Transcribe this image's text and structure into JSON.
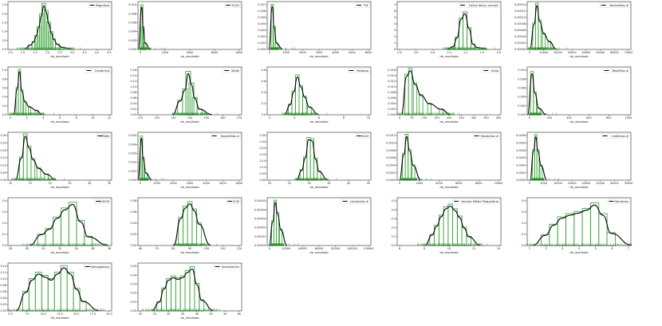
{
  "colors": {
    "hist": "#2ca02c",
    "kde": "#000000",
    "rug": "#2ca02c",
    "axis": "#000000"
  },
  "chart_data": [
    {
      "type": "histogram",
      "legend": "Magnésio",
      "xlabel": "de_resultado",
      "xticks": [
        "0.5",
        "1.0",
        "1.5",
        "2.0",
        "2.5",
        "3.0",
        "3.5",
        "4.0",
        "4.5"
      ],
      "yticks": [
        "0.0",
        "0.5",
        "1.0",
        "1.5",
        "2.0",
        "2.5"
      ],
      "xlim": [
        0.4,
        4.6
      ],
      "ylim": [
        0,
        2.7
      ],
      "peak": 1.95,
      "bins": [
        [
          1.3,
          0.25
        ],
        [
          1.45,
          0.45
        ],
        [
          1.55,
          0.8
        ],
        [
          1.65,
          1.3
        ],
        [
          1.75,
          2.0
        ],
        [
          1.85,
          2.6
        ],
        [
          1.95,
          2.2
        ],
        [
          2.05,
          1.55
        ],
        [
          2.15,
          1.0
        ],
        [
          2.25,
          0.6
        ],
        [
          2.4,
          0.3
        ],
        [
          2.6,
          0.12
        ]
      ]
    },
    {
      "type": "histogram",
      "legend": "TSCD",
      "xlabel": "de_resultado",
      "xticks": [
        "0",
        "2000",
        "4000",
        "6000",
        "8000"
      ],
      "yticks": [
        "0.000",
        "0.002",
        "0.004",
        "0.006",
        "0.008",
        "0.010"
      ],
      "xlim": [
        -300,
        8800
      ],
      "ylim": [
        0,
        0.0105
      ],
      "peak": 0.0098,
      "bins": [
        [
          30,
          0.0098
        ],
        [
          150,
          0.005
        ],
        [
          300,
          0.0015
        ]
      ]
    },
    {
      "type": "histogram",
      "legend": "TSF",
      "xlabel": "de_resultado",
      "xticks": [
        "0",
        "1000",
        "2000",
        "3000",
        "4000",
        "5000",
        "6000"
      ],
      "yticks": [
        "0.000",
        "0.001",
        "0.002",
        "0.003",
        "0.004",
        "0.005",
        "0.006",
        "0.007"
      ],
      "xlim": [
        -300,
        6400
      ],
      "ylim": [
        0,
        0.0072
      ],
      "peak": 0.0058,
      "bins": [
        [
          30,
          0.0068
        ],
        [
          150,
          0.0035
        ],
        [
          300,
          0.001
        ]
      ]
    },
    {
      "type": "histogram",
      "legend": "Cálcio iônico mmol/L",
      "xlabel": "de_resultado",
      "xticks": [
        "0.4",
        "0.6",
        "0.8",
        "1.0",
        "1.2",
        "1.4",
        "1.6"
      ],
      "yticks": [
        "0",
        "1",
        "2",
        "3",
        "4",
        "5",
        "6",
        "7"
      ],
      "xlim": [
        0.35,
        1.65
      ],
      "ylim": [
        0,
        7
      ],
      "peak": 5.2,
      "bins": [
        [
          1.05,
          0.4
        ],
        [
          1.1,
          1.8
        ],
        [
          1.15,
          4.6
        ],
        [
          1.2,
          5.5
        ],
        [
          1.25,
          3.2
        ],
        [
          1.3,
          0.8
        ],
        [
          1.35,
          0.3
        ]
      ]
    },
    {
      "type": "histogram",
      "legend": "Neutrófilos #",
      "xlabel": "de_resultado",
      "xticks": [
        "0",
        "10000",
        "20000",
        "30000",
        "40000",
        "50000",
        "60000",
        "70000"
      ],
      "yticks": [
        "0.00000",
        "0.00002",
        "0.00004",
        "0.00006",
        "0.00008",
        "0.00010",
        "0.00012",
        "0.00014"
      ],
      "xlim": [
        -3000,
        72000
      ],
      "ylim": [
        0,
        0.000145
      ],
      "peak": 0.00011,
      "bins": [
        [
          2000,
          8e-05
        ],
        [
          4000,
          0.00014
        ],
        [
          6000,
          9e-05
        ],
        [
          9000,
          5e-05
        ],
        [
          13000,
          2.5e-05
        ]
      ]
    },
    {
      "type": "histogram",
      "legend": "Creatinina",
      "xlabel": "de_resultado",
      "xticks": [
        "0",
        "2",
        "4",
        "6",
        "8",
        "10",
        "12"
      ],
      "yticks": [
        "0.0",
        "0.2",
        "0.4",
        "0.6",
        "0.8",
        "1.0"
      ],
      "xlim": [
        -0.5,
        13
      ],
      "ylim": [
        0,
        1.05
      ],
      "peak": 0.85,
      "bins": [
        [
          0.7,
          0.6
        ],
        [
          1.0,
          1.0
        ],
        [
          1.3,
          0.55
        ],
        [
          1.7,
          0.3
        ],
        [
          2.3,
          0.18
        ],
        [
          3.2,
          0.1
        ]
      ]
    },
    {
      "type": "histogram",
      "legend": "Sódio",
      "xlabel": "de_resultado",
      "xticks": [
        "110",
        "120",
        "130",
        "140",
        "150",
        "160",
        "170"
      ],
      "yticks": [
        "0.00",
        "0.02",
        "0.04",
        "0.06",
        "0.08",
        "0.10",
        "0.12",
        "0.14",
        "0.16"
      ],
      "xlim": [
        108,
        172
      ],
      "ylim": [
        0,
        0.165
      ],
      "peak": 0.1,
      "bins": [
        [
          134,
          0.05
        ],
        [
          137,
          0.09
        ],
        [
          139,
          0.15
        ],
        [
          141,
          0.11
        ],
        [
          143,
          0.06
        ],
        [
          146,
          0.02
        ]
      ]
    },
    {
      "type": "histogram",
      "legend": "Potássio",
      "xlabel": "de_resultado",
      "xticks": [
        "2",
        "4",
        "6",
        "8",
        "10"
      ],
      "yticks": [
        "0.0",
        "0.2",
        "0.4",
        "0.6",
        "0.8"
      ],
      "xlim": [
        1.6,
        10.2
      ],
      "ylim": [
        0,
        0.9
      ],
      "peak": 0.65,
      "bins": [
        [
          3.5,
          0.2
        ],
        [
          3.8,
          0.45
        ],
        [
          4.1,
          0.75
        ],
        [
          4.4,
          0.55
        ],
        [
          4.7,
          0.35
        ],
        [
          5.1,
          0.15
        ]
      ]
    },
    {
      "type": "histogram",
      "legend": "Uréia",
      "xlabel": "de_resultado",
      "xticks": [
        "0",
        "50",
        "100",
        "150",
        "200",
        "250",
        "300",
        "350",
        "400"
      ],
      "yticks": [
        "0.000",
        "0.002",
        "0.004",
        "0.006",
        "0.008",
        "0.010",
        "0.012",
        "0.014",
        "0.016"
      ],
      "xlim": [
        -15,
        420
      ],
      "ylim": [
        0,
        0.0165
      ],
      "peak": 0.015,
      "bins": [
        [
          25,
          0.014
        ],
        [
          40,
          0.016
        ],
        [
          60,
          0.011
        ],
        [
          85,
          0.007
        ],
        [
          120,
          0.004
        ],
        [
          170,
          0.002
        ]
      ]
    },
    {
      "type": "histogram",
      "legend": "Basófilos #",
      "xlabel": "de_resultado",
      "xticks": [
        "0",
        "200",
        "400",
        "600",
        "800",
        "1000"
      ],
      "yticks": [
        "0.000",
        "0.002",
        "0.004",
        "0.006",
        "0.008",
        "0.010"
      ],
      "xlim": [
        -40,
        1040
      ],
      "ylim": [
        0,
        0.0105
      ],
      "peak": 0.0085,
      "bins": [
        [
          10,
          0.0095
        ],
        [
          40,
          0.005
        ],
        [
          80,
          0.0015
        ]
      ]
    },
    {
      "type": "histogram",
      "legend": "RDW",
      "xlabel": "de_resultado",
      "xticks": [
        "10",
        "15",
        "20",
        "25",
        "30",
        "35"
      ],
      "yticks": [
        "0.00",
        "0.05",
        "0.10",
        "0.15",
        "0.20",
        "0.25",
        "0.30"
      ],
      "xlim": [
        9,
        36
      ],
      "ylim": [
        0,
        0.31
      ],
      "peak": 0.27,
      "bins": [
        [
          12.5,
          0.15
        ],
        [
          13.5,
          0.3
        ],
        [
          14.5,
          0.22
        ],
        [
          15.5,
          0.14
        ],
        [
          17,
          0.08
        ],
        [
          19,
          0.04
        ]
      ]
    },
    {
      "type": "histogram",
      "legend": "Eosinófilos #",
      "xlabel": "de_resultado",
      "xticks": [
        "0",
        "1000",
        "2000",
        "3000",
        "4000",
        "5000",
        "6000"
      ],
      "yticks": [
        "0.000",
        "0.001",
        "0.002",
        "0.003",
        "0.004",
        "0.005"
      ],
      "xlim": [
        -200,
        6300
      ],
      "ylim": [
        0,
        0.0052
      ],
      "peak": 0.0042,
      "bins": [
        [
          20,
          0.0048
        ],
        [
          120,
          0.0025
        ],
        [
          300,
          0.0008
        ]
      ]
    },
    {
      "type": "histogram",
      "legend": "HCM",
      "xlabel": "de_resultado",
      "xticks": [
        "20",
        "25",
        "30",
        "35",
        "40",
        "45"
      ],
      "yticks": [
        "0.00",
        "0.05",
        "0.10",
        "0.15",
        "0.20",
        "0.25",
        "0.30",
        "0.35"
      ],
      "xlim": [
        17,
        47
      ],
      "ylim": [
        0,
        0.37
      ],
      "peak": 0.3,
      "bins": [
        [
          27,
          0.08
        ],
        [
          28,
          0.18
        ],
        [
          29,
          0.33
        ],
        [
          30,
          0.32
        ],
        [
          31,
          0.17
        ],
        [
          32,
          0.07
        ]
      ]
    },
    {
      "type": "histogram",
      "legend": "Monócitos #",
      "xlabel": "de_resultado",
      "xticks": [
        "0",
        "2000",
        "4000",
        "6000",
        "8000",
        "10000"
      ],
      "yticks": [
        "0.0000",
        "0.0002",
        "0.0004",
        "0.0006",
        "0.0008",
        "0.0010",
        "0.0012"
      ],
      "xlim": [
        -400,
        10500
      ],
      "ylim": [
        0,
        0.00125
      ],
      "peak": 0.0011,
      "bins": [
        [
          300,
          0.0007
        ],
        [
          600,
          0.0012
        ],
        [
          900,
          0.0008
        ],
        [
          1300,
          0.0004
        ]
      ]
    },
    {
      "type": "histogram",
      "legend": "Linfócitos #",
      "xlabel": "de_resultado",
      "xticks": [
        "0",
        "5000",
        "10000",
        "15000",
        "20000",
        "25000",
        "30000",
        "35000"
      ],
      "yticks": [
        "0.0000",
        "0.0001",
        "0.0002",
        "0.0003",
        "0.0004",
        "0.0005",
        "0.0006"
      ],
      "xlim": [
        -1500,
        36000
      ],
      "ylim": [
        0,
        0.00063
      ],
      "peak": 0.00052,
      "bins": [
        [
          800,
          0.0004
        ],
        [
          1600,
          0.0006
        ],
        [
          2400,
          0.0004
        ],
        [
          3500,
          0.0002
        ]
      ]
    },
    {
      "type": "histogram",
      "legend": "CHCM",
      "xlabel": "de_resultado",
      "xticks": [
        "26",
        "28",
        "30",
        "32",
        "34",
        "36",
        "38"
      ],
      "yticks": [
        "0.0",
        "0.1",
        "0.2",
        "0.3",
        "0.4"
      ],
      "xlim": [
        25.2,
        38.5
      ],
      "ylim": [
        0,
        0.42
      ],
      "peak": 0.35,
      "bins": [
        [
          29.5,
          0.1
        ],
        [
          30.5,
          0.15
        ],
        [
          31.5,
          0.25
        ],
        [
          32.5,
          0.33
        ],
        [
          33.5,
          0.38
        ],
        [
          34.5,
          0.22
        ],
        [
          35.5,
          0.08
        ]
      ]
    },
    {
      "type": "histogram",
      "legend": "VCM",
      "xlabel": "de_resultado",
      "xticks": [
        "60",
        "70",
        "80",
        "90",
        "100",
        "110",
        "120"
      ],
      "yticks": [
        "0.00",
        "0.02",
        "0.04",
        "0.06",
        "0.08"
      ],
      "xlim": [
        56,
        124
      ],
      "ylim": [
        0,
        0.085
      ],
      "peak": 0.077,
      "bins": [
        [
          84,
          0.05
        ],
        [
          87,
          0.07
        ],
        [
          90,
          0.078
        ],
        [
          93,
          0.065
        ],
        [
          96,
          0.04
        ]
      ]
    },
    {
      "type": "histogram",
      "legend": "Leucócitos #",
      "xlabel": "de_resultado",
      "xticks": [
        "0",
        "20000",
        "40000",
        "60000",
        "80000",
        "100000",
        "120000"
      ],
      "yticks": [
        "0.00000",
        "0.00001",
        "0.00002",
        "0.00003",
        "0.00004",
        "0.00005"
      ],
      "xlim": [
        -4000,
        125000
      ],
      "ylim": [
        0,
        5.8e-05
      ],
      "peak": 5.2e-05,
      "bins": [
        [
          3000,
          3e-05
        ],
        [
          6000,
          5.5e-05
        ],
        [
          9000,
          4e-05
        ],
        [
          13000,
          2e-05
        ]
      ]
    },
    {
      "type": "histogram",
      "legend": "Volume Médio Plaquetário",
      "xlabel": "de_resultado",
      "xticks": [
        "6",
        "8",
        "10",
        "12",
        "14"
      ],
      "yticks": [
        "0.0",
        "0.1",
        "0.2",
        "0.3",
        "0.4",
        "0.5"
      ],
      "xlim": [
        4.2,
        15.5
      ],
      "ylim": [
        0,
        0.52
      ],
      "peak": 0.38,
      "bins": [
        [
          8,
          0.12
        ],
        [
          8.5,
          0.22
        ],
        [
          9,
          0.33
        ],
        [
          9.5,
          0.42
        ],
        [
          10,
          0.45
        ],
        [
          10.5,
          0.4
        ],
        [
          11,
          0.32
        ],
        [
          11.5,
          0.2
        ],
        [
          12,
          0.1
        ]
      ]
    },
    {
      "type": "histogram",
      "legend": "Hemácias",
      "xlabel": "de_resultado",
      "xticks": [
        "1",
        "2",
        "3",
        "4",
        "5",
        "6",
        "7"
      ],
      "yticks": [
        "0.0",
        "0.1",
        "0.2",
        "0.3",
        "0.4"
      ],
      "xlim": [
        0.9,
        7.2
      ],
      "ylim": [
        0,
        0.45
      ],
      "peak": 0.4,
      "bins": [
        [
          2,
          0.1
        ],
        [
          2.5,
          0.2
        ],
        [
          3,
          0.27
        ],
        [
          3.5,
          0.3
        ],
        [
          4,
          0.32
        ],
        [
          4.5,
          0.35
        ],
        [
          5,
          0.4
        ],
        [
          5.5,
          0.3
        ],
        [
          6,
          0.12
        ]
      ]
    },
    {
      "type": "histogram",
      "legend": "Hemoglobina",
      "xlabel": "de_resultado",
      "xticks": [
        "5.0",
        "7.5",
        "10.0",
        "12.5",
        "15.0",
        "17.5",
        "20.0"
      ],
      "yticks": [
        "0.00",
        "0.02",
        "0.04",
        "0.06",
        "0.08",
        "0.10",
        "0.12",
        "0.14"
      ],
      "xlim": [
        4.2,
        20.5
      ],
      "ylim": [
        0,
        0.148
      ],
      "peak": 0.14,
      "bins": [
        [
          7,
          0.06
        ],
        [
          8,
          0.1
        ],
        [
          9,
          0.12
        ],
        [
          10,
          0.11
        ],
        [
          11,
          0.1
        ],
        [
          12,
          0.12
        ],
        [
          13,
          0.14
        ],
        [
          14,
          0.12
        ],
        [
          15,
          0.07
        ],
        [
          16,
          0.03
        ]
      ]
    },
    {
      "type": "histogram",
      "legend": "Hematócrito",
      "xlabel": "de_resultado",
      "xticks": [
        "20",
        "25",
        "30",
        "35",
        "40",
        "45",
        "50",
        "60"
      ],
      "yticks": [
        "0.00",
        "0.01",
        "0.02",
        "0.03",
        "0.04",
        "0.05"
      ],
      "xlim": [
        18,
        62
      ],
      "ylim": [
        0,
        0.052
      ],
      "peak": 0.047,
      "bins": [
        [
          27,
          0.01
        ],
        [
          29,
          0.025
        ],
        [
          31,
          0.035
        ],
        [
          33,
          0.038
        ],
        [
          35,
          0.036
        ],
        [
          37,
          0.038
        ],
        [
          39,
          0.044
        ],
        [
          41,
          0.048
        ],
        [
          43,
          0.03
        ],
        [
          45,
          0.012
        ]
      ]
    }
  ]
}
